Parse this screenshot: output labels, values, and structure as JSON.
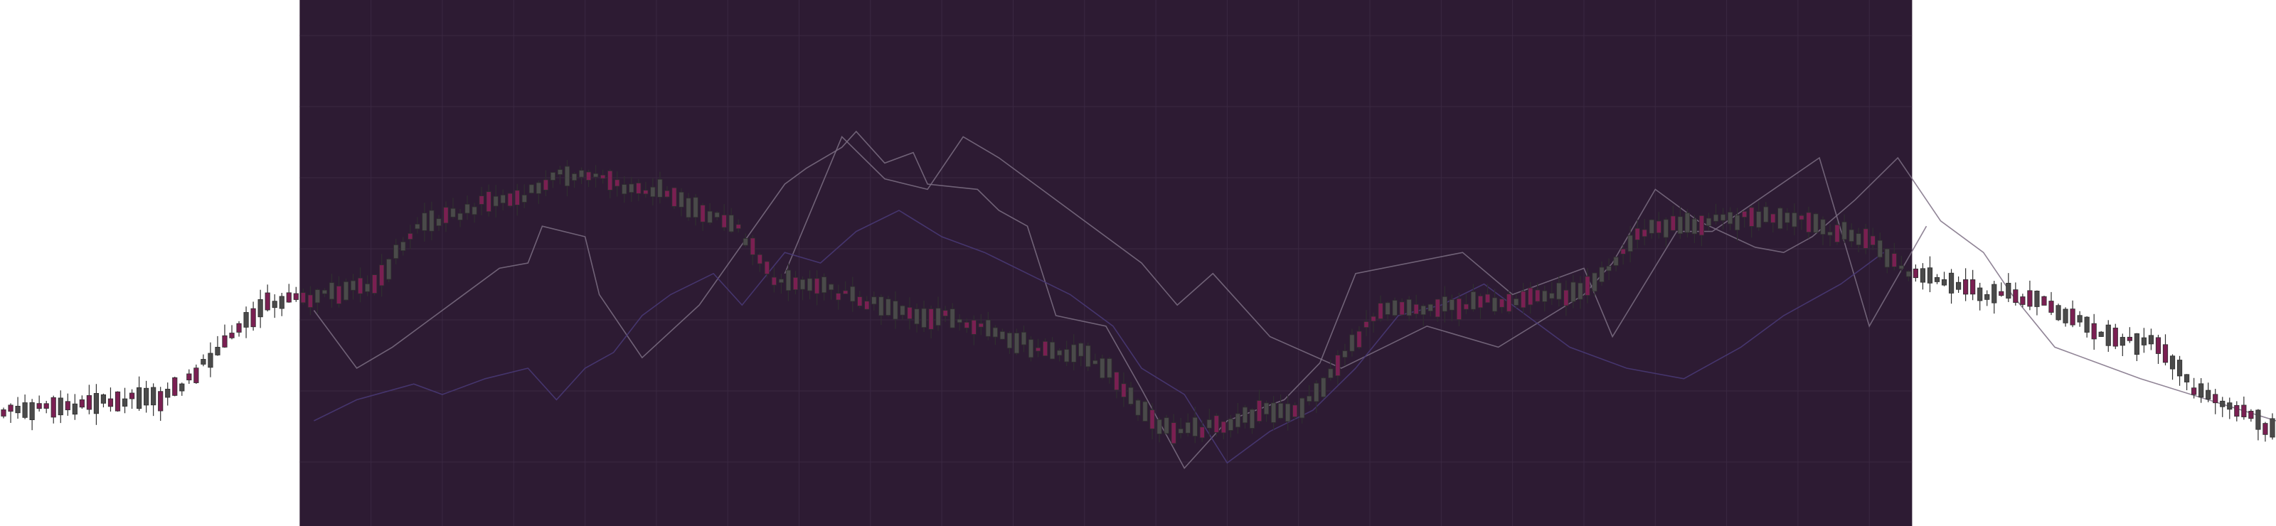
{
  "chart_data": {
    "type": "candlestick",
    "title": "",
    "xlabel": "",
    "ylabel": "",
    "grid": true,
    "legend": "none",
    "x_range": [
      0,
      319
    ],
    "ylim": [
      0,
      100
    ],
    "colors": {
      "background": "#ffffff",
      "panel": "#2d1b33",
      "grid": "#3a2842",
      "candle_up": "#4a4a4a",
      "candle_down": "#7a1f52",
      "candle_wick": "#2f2f2f",
      "line_grey": "#7c6f84",
      "line_purple": "#4a3a78"
    },
    "highlight_range": [
      42,
      268
    ],
    "candle_waypoints": [
      [
        0,
        22
      ],
      [
        20,
        24
      ],
      [
        40,
        43
      ],
      [
        50,
        45
      ],
      [
        60,
        58
      ],
      [
        70,
        62
      ],
      [
        80,
        67
      ],
      [
        90,
        64
      ],
      [
        100,
        59
      ],
      [
        110,
        46
      ],
      [
        130,
        40
      ],
      [
        150,
        33
      ],
      [
        165,
        18
      ],
      [
        180,
        22
      ],
      [
        195,
        41
      ],
      [
        220,
        44
      ],
      [
        232,
        57
      ],
      [
        250,
        59
      ],
      [
        260,
        55
      ],
      [
        268,
        48
      ],
      [
        280,
        44
      ],
      [
        300,
        35
      ],
      [
        310,
        24
      ],
      [
        319,
        18
      ]
    ],
    "series": [
      {
        "kind": "line",
        "color_key": "line_grey",
        "points": [
          [
            44,
            41
          ],
          [
            50,
            30
          ],
          [
            55,
            34
          ],
          [
            60,
            39
          ],
          [
            64,
            43
          ],
          [
            70,
            49
          ],
          [
            74,
            50
          ],
          [
            76,
            57
          ],
          [
            82,
            55
          ],
          [
            84,
            44
          ],
          [
            90,
            32
          ],
          [
            98,
            42
          ],
          [
            110,
            65
          ],
          [
            113,
            68
          ],
          [
            118,
            72
          ],
          [
            120,
            75
          ],
          [
            124,
            69
          ],
          [
            128,
            71
          ],
          [
            130,
            65
          ],
          [
            137,
            64
          ],
          [
            140,
            60
          ],
          [
            144,
            57
          ],
          [
            148,
            40
          ],
          [
            155,
            38
          ],
          [
            160,
            26
          ],
          [
            166,
            11
          ],
          [
            172,
            20
          ],
          [
            180,
            24
          ],
          [
            185,
            31
          ],
          [
            190,
            48
          ],
          [
            205,
            52
          ],
          [
            212,
            44
          ],
          [
            222,
            49
          ],
          [
            226,
            36
          ],
          [
            235,
            56
          ],
          [
            240,
            56
          ],
          [
            255,
            70
          ],
          [
            262,
            38
          ],
          [
            270,
            57
          ]
        ]
      },
      {
        "kind": "line",
        "color_key": "line_grey",
        "points": [
          [
            110,
            48
          ],
          [
            118,
            74
          ],
          [
            124,
            66
          ],
          [
            130,
            64
          ],
          [
            135,
            74
          ],
          [
            140,
            70
          ],
          [
            146,
            64
          ],
          [
            160,
            50
          ],
          [
            165,
            42
          ],
          [
            170,
            48
          ],
          [
            178,
            36
          ],
          [
            188,
            30
          ],
          [
            200,
            38
          ],
          [
            210,
            34
          ],
          [
            222,
            44
          ],
          [
            226,
            50
          ],
          [
            232,
            64
          ],
          [
            238,
            58
          ],
          [
            246,
            53
          ],
          [
            250,
            52
          ],
          [
            254,
            55
          ],
          [
            260,
            62
          ],
          [
            266,
            70
          ],
          [
            268,
            66
          ],
          [
            272,
            58
          ],
          [
            278,
            52
          ],
          [
            282,
            44
          ],
          [
            288,
            34
          ],
          [
            300,
            28
          ],
          [
            319,
            20
          ]
        ]
      },
      {
        "kind": "line",
        "color_key": "line_purple",
        "points": [
          [
            44,
            20
          ],
          [
            50,
            24
          ],
          [
            58,
            27
          ],
          [
            62,
            25
          ],
          [
            68,
            28
          ],
          [
            74,
            30
          ],
          [
            78,
            24
          ],
          [
            82,
            30
          ],
          [
            86,
            33
          ],
          [
            90,
            40
          ],
          [
            94,
            44
          ],
          [
            100,
            48
          ],
          [
            104,
            42
          ],
          [
            110,
            52
          ],
          [
            115,
            50
          ],
          [
            120,
            56
          ],
          [
            126,
            60
          ],
          [
            132,
            55
          ],
          [
            138,
            52
          ],
          [
            144,
            48
          ],
          [
            150,
            44
          ],
          [
            156,
            38
          ],
          [
            160,
            30
          ],
          [
            166,
            25
          ],
          [
            172,
            12
          ],
          [
            178,
            18
          ],
          [
            184,
            22
          ],
          [
            190,
            30
          ],
          [
            196,
            40
          ],
          [
            202,
            42
          ],
          [
            208,
            46
          ],
          [
            214,
            40
          ],
          [
            220,
            34
          ],
          [
            228,
            30
          ],
          [
            236,
            28
          ],
          [
            244,
            34
          ],
          [
            250,
            40
          ],
          [
            258,
            46
          ],
          [
            264,
            52
          ]
        ]
      }
    ]
  }
}
